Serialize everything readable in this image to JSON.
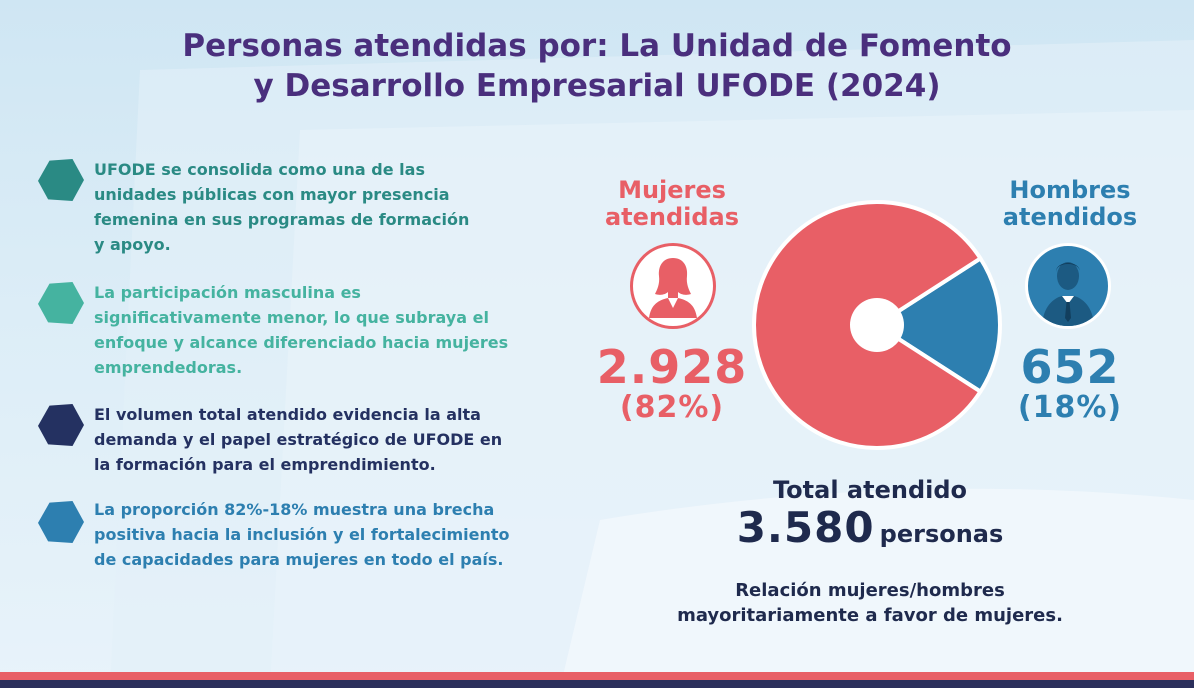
{
  "title": {
    "line1": "Personas atendidas por: La Unidad de Fomento",
    "line2": "y Desarrollo Empresarial UFODE (2024)"
  },
  "bullets": [
    {
      "color": "#2a8a84",
      "lines": [
        "UFODE se consolida como una de las",
        "unidades públicas con mayor presencia",
        "femenina en sus programas de formación",
        "y apoyo."
      ]
    },
    {
      "color": "#45b3a0",
      "lines": [
        "La participación masculina es",
        "significativamente menor, lo que subraya el",
        "enfoque y alcance diferenciado hacia mujeres",
        "emprendedoras."
      ]
    },
    {
      "color": "#243161",
      "lines": [
        "El volumen total atendido evidencia la alta",
        "demanda y el papel estratégico de UFODE en",
        "la formación para el emprendimiento."
      ]
    },
    {
      "color": "#2d7fb0",
      "lines": [
        "La proporción 82%-18% muestra una brecha",
        "positiva hacia la inclusión y el fortalecimiento",
        "de capacidades para mujeres en todo el país."
      ]
    }
  ],
  "mujeres": {
    "label_line1": "Mujeres",
    "label_line2": "atendidas",
    "value": "2.928",
    "percent": "(82%)",
    "icon": "woman-icon",
    "color": "#e85f66"
  },
  "hombres": {
    "label_line1": "Hombres",
    "label_line2": "atendidos",
    "value": "652",
    "percent": "(18%)",
    "icon": "man-icon",
    "color": "#2d7fb0"
  },
  "total": {
    "label": "Total atendido",
    "value": "3.580",
    "unit": "personas"
  },
  "relation": {
    "line1": "Relación mujeres/hombres",
    "line2": "mayoritariamente a favor de mujeres."
  },
  "chart_data": {
    "type": "pie",
    "categories": [
      "Mujeres atendidas",
      "Hombres atendidos"
    ],
    "values": [
      2928,
      652
    ],
    "percentages": [
      82,
      18
    ],
    "colors": [
      "#e85f66",
      "#2d7fb0"
    ],
    "title": ""
  }
}
